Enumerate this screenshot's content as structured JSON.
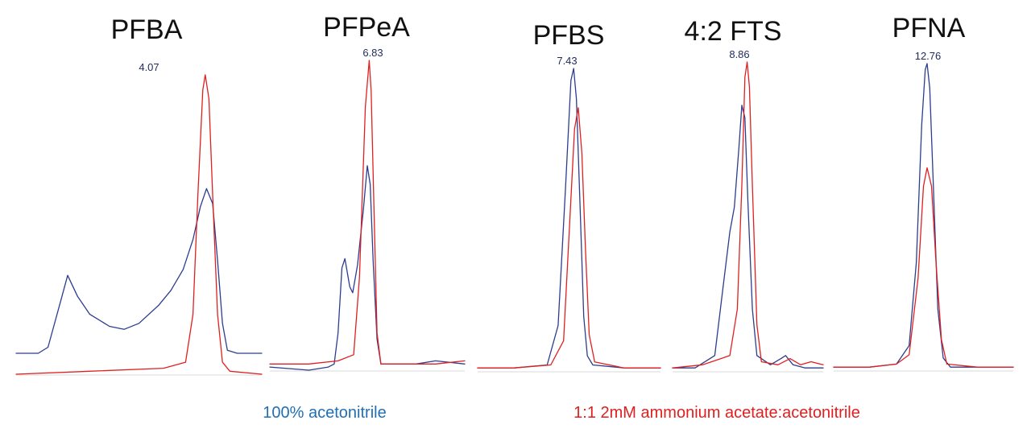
{
  "colors": {
    "acetonitrile": "#2b3d8f",
    "ammonium_acetate": "#e02020",
    "legend_blue": "#1f6fb5",
    "legend_red": "#e02020"
  },
  "legend": {
    "acetonitrile_label": "100% acetonitrile",
    "ammonium_acetate_label": "1:1 2mM ammonium acetate:acetonitrile"
  },
  "chart_data": [
    {
      "type": "line",
      "title": "PFBA",
      "peak_label": "4.07",
      "peak_rt": 4.07,
      "series": [
        {
          "key": "acetonitrile",
          "values": [
            [
              0.0,
              0.07
            ],
            [
              0.09,
              0.07
            ],
            [
              0.13,
              0.09
            ],
            [
              0.18,
              0.24
            ],
            [
              0.21,
              0.33
            ],
            [
              0.25,
              0.26
            ],
            [
              0.3,
              0.2
            ],
            [
              0.38,
              0.16
            ],
            [
              0.44,
              0.15
            ],
            [
              0.5,
              0.17
            ],
            [
              0.58,
              0.23
            ],
            [
              0.63,
              0.28
            ],
            [
              0.68,
              0.35
            ],
            [
              0.72,
              0.45
            ],
            [
              0.75,
              0.56
            ],
            [
              0.775,
              0.62
            ],
            [
              0.8,
              0.57
            ],
            [
              0.82,
              0.38
            ],
            [
              0.84,
              0.17
            ],
            [
              0.86,
              0.08
            ],
            [
              0.9,
              0.07
            ],
            [
              1.0,
              0.07
            ]
          ]
        },
        {
          "key": "ammonium_acetate",
          "values": [
            [
              0.0,
              0.0
            ],
            [
              0.3,
              0.01
            ],
            [
              0.6,
              0.02
            ],
            [
              0.69,
              0.04
            ],
            [
              0.72,
              0.2
            ],
            [
              0.74,
              0.6
            ],
            [
              0.76,
              0.95
            ],
            [
              0.77,
              1.0
            ],
            [
              0.785,
              0.92
            ],
            [
              0.8,
              0.6
            ],
            [
              0.82,
              0.2
            ],
            [
              0.84,
              0.04
            ],
            [
              0.87,
              0.01
            ],
            [
              1.0,
              0.0
            ]
          ]
        }
      ]
    },
    {
      "type": "line",
      "title": "PFPeA",
      "peak_label": "6.83",
      "peak_rt": 6.83,
      "series": [
        {
          "key": "acetonitrile",
          "values": [
            [
              0.0,
              0.01
            ],
            [
              0.2,
              0.0
            ],
            [
              0.3,
              0.01
            ],
            [
              0.33,
              0.02
            ],
            [
              0.35,
              0.12
            ],
            [
              0.37,
              0.33
            ],
            [
              0.385,
              0.36
            ],
            [
              0.41,
              0.27
            ],
            [
              0.425,
              0.25
            ],
            [
              0.45,
              0.34
            ],
            [
              0.48,
              0.52
            ],
            [
              0.5,
              0.66
            ],
            [
              0.515,
              0.6
            ],
            [
              0.53,
              0.35
            ],
            [
              0.55,
              0.1
            ],
            [
              0.57,
              0.02
            ],
            [
              0.65,
              0.02
            ],
            [
              0.75,
              0.02
            ],
            [
              0.85,
              0.03
            ],
            [
              1.0,
              0.02
            ]
          ]
        },
        {
          "key": "ammonium_acetate",
          "values": [
            [
              0.0,
              0.02
            ],
            [
              0.2,
              0.02
            ],
            [
              0.35,
              0.03
            ],
            [
              0.43,
              0.05
            ],
            [
              0.46,
              0.3
            ],
            [
              0.49,
              0.85
            ],
            [
              0.51,
              1.0
            ],
            [
              0.52,
              0.9
            ],
            [
              0.535,
              0.5
            ],
            [
              0.55,
              0.12
            ],
            [
              0.57,
              0.02
            ],
            [
              0.7,
              0.02
            ],
            [
              0.85,
              0.02
            ],
            [
              1.0,
              0.03
            ]
          ]
        }
      ]
    },
    {
      "type": "line",
      "title": "PFBS",
      "peak_label": "7.43",
      "peak_rt": 7.43,
      "series": [
        {
          "key": "acetonitrile",
          "values": [
            [
              0.0,
              0.01
            ],
            [
              0.2,
              0.01
            ],
            [
              0.38,
              0.02
            ],
            [
              0.44,
              0.15
            ],
            [
              0.48,
              0.6
            ],
            [
              0.51,
              0.96
            ],
            [
              0.525,
              1.0
            ],
            [
              0.54,
              0.9
            ],
            [
              0.56,
              0.55
            ],
            [
              0.58,
              0.18
            ],
            [
              0.6,
              0.05
            ],
            [
              0.63,
              0.02
            ],
            [
              0.8,
              0.01
            ],
            [
              1.0,
              0.01
            ]
          ]
        },
        {
          "key": "ammonium_acetate",
          "values": [
            [
              0.0,
              0.01
            ],
            [
              0.2,
              0.01
            ],
            [
              0.4,
              0.02
            ],
            [
              0.47,
              0.1
            ],
            [
              0.5,
              0.45
            ],
            [
              0.53,
              0.8
            ],
            [
              0.55,
              0.87
            ],
            [
              0.57,
              0.72
            ],
            [
              0.59,
              0.4
            ],
            [
              0.61,
              0.12
            ],
            [
              0.64,
              0.03
            ],
            [
              0.8,
              0.01
            ],
            [
              1.0,
              0.01
            ]
          ]
        }
      ]
    },
    {
      "type": "line",
      "title": "4:2 FTS",
      "peak_label": "8.86",
      "peak_rt": 8.86,
      "series": [
        {
          "key": "acetonitrile",
          "values": [
            [
              0.0,
              0.01
            ],
            [
              0.15,
              0.01
            ],
            [
              0.28,
              0.05
            ],
            [
              0.33,
              0.25
            ],
            [
              0.38,
              0.45
            ],
            [
              0.41,
              0.53
            ],
            [
              0.44,
              0.72
            ],
            [
              0.46,
              0.86
            ],
            [
              0.48,
              0.82
            ],
            [
              0.5,
              0.55
            ],
            [
              0.53,
              0.2
            ],
            [
              0.56,
              0.05
            ],
            [
              0.65,
              0.02
            ],
            [
              0.72,
              0.04
            ],
            [
              0.75,
              0.05
            ],
            [
              0.8,
              0.02
            ],
            [
              0.88,
              0.01
            ],
            [
              1.0,
              0.01
            ]
          ]
        },
        {
          "key": "ammonium_acetate",
          "values": [
            [
              0.0,
              0.01
            ],
            [
              0.2,
              0.02
            ],
            [
              0.38,
              0.05
            ],
            [
              0.43,
              0.2
            ],
            [
              0.46,
              0.6
            ],
            [
              0.48,
              0.95
            ],
            [
              0.495,
              1.0
            ],
            [
              0.51,
              0.92
            ],
            [
              0.53,
              0.6
            ],
            [
              0.56,
              0.15
            ],
            [
              0.59,
              0.03
            ],
            [
              0.7,
              0.02
            ],
            [
              0.78,
              0.04
            ],
            [
              0.85,
              0.02
            ],
            [
              0.92,
              0.03
            ],
            [
              1.0,
              0.02
            ]
          ]
        }
      ]
    },
    {
      "type": "line",
      "title": "PFNA",
      "peak_label": "12.76",
      "peak_rt": 12.76,
      "series": [
        {
          "key": "acetonitrile",
          "values": [
            [
              0.0,
              0.01
            ],
            [
              0.2,
              0.01
            ],
            [
              0.35,
              0.02
            ],
            [
              0.42,
              0.08
            ],
            [
              0.46,
              0.35
            ],
            [
              0.49,
              0.8
            ],
            [
              0.51,
              0.98
            ],
            [
              0.52,
              1.0
            ],
            [
              0.535,
              0.92
            ],
            [
              0.555,
              0.6
            ],
            [
              0.58,
              0.2
            ],
            [
              0.61,
              0.04
            ],
            [
              0.65,
              0.01
            ],
            [
              0.8,
              0.01
            ],
            [
              1.0,
              0.01
            ]
          ]
        },
        {
          "key": "ammonium_acetate",
          "values": [
            [
              0.0,
              0.01
            ],
            [
              0.2,
              0.01
            ],
            [
              0.35,
              0.02
            ],
            [
              0.42,
              0.05
            ],
            [
              0.47,
              0.3
            ],
            [
              0.5,
              0.6
            ],
            [
              0.52,
              0.66
            ],
            [
              0.545,
              0.6
            ],
            [
              0.57,
              0.35
            ],
            [
              0.6,
              0.1
            ],
            [
              0.63,
              0.02
            ],
            [
              0.8,
              0.01
            ],
            [
              1.0,
              0.01
            ]
          ]
        }
      ]
    }
  ]
}
